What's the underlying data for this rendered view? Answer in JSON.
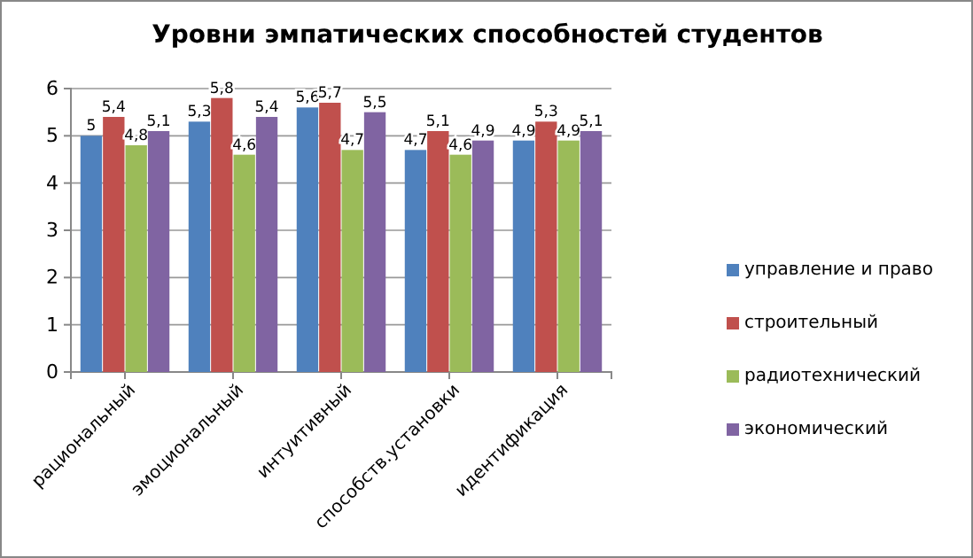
{
  "chart_data": {
    "type": "bar",
    "title": "Уровни эмпатических способностей студентов",
    "categories": [
      "рациональный",
      "эмоциональный",
      "интуитивный",
      "способств.установки",
      "идентификация"
    ],
    "series": [
      {
        "name": "управление и право",
        "color": "#4f81bd",
        "values": [
          5,
          5.3,
          5.6,
          4.7,
          4.9
        ],
        "value_labels": [
          "5",
          "5,3",
          "5,6",
          "4,7",
          "4,9"
        ]
      },
      {
        "name": "строительный",
        "color": "#c0504d",
        "values": [
          5.4,
          5.8,
          5.7,
          5.1,
          5.3
        ],
        "value_labels": [
          "5,4",
          "5,8",
          "5,7",
          "5,1",
          "5,3"
        ]
      },
      {
        "name": "радиотехнический",
        "color": "#9bbb59",
        "values": [
          4.8,
          4.6,
          4.7,
          4.6,
          4.9
        ],
        "value_labels": [
          "4,8",
          "4,6",
          "4,7",
          "4,6",
          "4,9"
        ]
      },
      {
        "name": "экономический",
        "color": "#8064a2",
        "values": [
          5.1,
          5.4,
          5.5,
          4.9,
          5.1
        ],
        "value_labels": [
          "5,1",
          "5,4",
          "5,5",
          "4,9",
          "5,1"
        ]
      }
    ],
    "ylim": [
      0,
      6
    ],
    "yticks": [
      0,
      1,
      2,
      3,
      4,
      5,
      6
    ],
    "grid": "y",
    "legend": "right"
  }
}
